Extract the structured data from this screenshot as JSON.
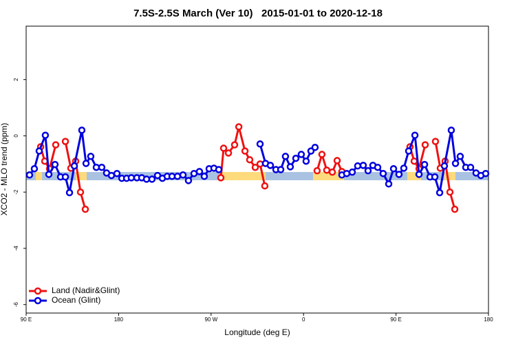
{
  "chart_data": {
    "type": "line",
    "title": "7.5S-2.5S March (Ver 10)   2015-01-01 to 2020-12-18",
    "x_label": "Longitude (deg E)",
    "y_label": "XCO2 - MLO trend (ppm)",
    "xlim": [
      90,
      540
    ],
    "ylim": [
      -6.3,
      3.9
    ],
    "xticks": [
      {
        "value": 90,
        "label": "90 E"
      },
      {
        "value": 180,
        "label": "180"
      },
      {
        "value": 270,
        "label": "90 W"
      },
      {
        "value": 360,
        "label": "0"
      },
      {
        "value": 450,
        "label": "90 E"
      },
      {
        "value": 540,
        "label": "180"
      }
    ],
    "yticks": [
      -6,
      -4,
      -2,
      0,
      2
    ],
    "legend": "bottom-left",
    "series": [
      {
        "name": "Land (Nadir&Glint)",
        "color": "#ee1111",
        "x": [
          104.1,
          108.1,
          112.8,
          118.8,
          null,
          128.2,
          133.5,
          138.2,
          142.9,
          147.6,
          null,
          279.5,
          282.2,
          286.9,
          292.9,
          297,
          303,
          307.6,
          313,
          317.7,
          322.3,
          null,
          373.2,
          377.9,
          382.6,
          388,
          392.7,
          397.3,
          null,
          463.6,
          467.7,
          472.4,
          478.4,
          null,
          488.4,
          493.1,
          497.8,
          502.5,
          507.2
        ],
        "values": [
          -0.39,
          -0.9,
          -1.17,
          -0.32,
          null,
          -0.2,
          -1.15,
          -0.9,
          -2,
          -2.61,
          null,
          -1.49,
          -0.44,
          -0.61,
          -0.32,
          0.32,
          -0.54,
          -0.85,
          -1.12,
          -1,
          -1.78,
          null,
          -1.24,
          -0.66,
          -1.22,
          -1.29,
          -0.88,
          -1.27,
          null,
          -0.39,
          -0.9,
          -1.17,
          -0.32,
          null,
          -0.2,
          -1.15,
          -0.9,
          -2,
          -2.61
        ]
      },
      {
        "name": "Ocean (Glint)",
        "color": "#0000dd",
        "x": [
          93.3,
          98,
          102.7,
          108.7,
          112.1,
          118.1,
          123.5,
          128.2,
          132.2,
          136.9,
          144.2,
          148.3,
          152.9,
          158.3,
          163.6,
          168.3,
          173,
          178.4,
          183.1,
          187.8,
          192.4,
          197.8,
          202.5,
          207.2,
          212.5,
          217.9,
          222.6,
          227.3,
          232,
          237.3,
          242.7,
          248,
          253.4,
          258.7,
          263.4,
          268.1,
          272.8,
          277.5,
          null,
          317.7,
          323,
          327.7,
          333.1,
          337.8,
          342.4,
          347.1,
          352.5,
          357.8,
          362.5,
          367.2,
          371.2,
          null,
          397.3,
          402,
          407.4,
          412.7,
          418.1,
          422.8,
          427.5,
          432.2,
          437.5,
          442.9,
          447.6,
          452.9,
          457.6,
          462.3,
          468.4,
          472.4,
          477.8,
          483.1,
          487.8,
          492.5,
          497.1,
          503.8,
          507.9,
          512.5,
          517.9,
          522.6,
          527.9,
          532.6,
          537.3
        ],
        "values": [
          -1.39,
          -1.17,
          -0.54,
          0.02,
          -1.37,
          -1.02,
          -1.46,
          -1.46,
          -2.02,
          -1.07,
          0.2,
          -0.98,
          -0.73,
          -1.12,
          -1.12,
          -1.32,
          -1.41,
          -1.34,
          -1.51,
          -1.51,
          -1.49,
          -1.49,
          -1.49,
          -1.54,
          -1.54,
          -1.41,
          -1.51,
          -1.44,
          -1.44,
          -1.44,
          -1.39,
          -1.59,
          -1.34,
          -1.27,
          -1.44,
          -1.17,
          -1.15,
          -1.2,
          null,
          -0.29,
          -0.98,
          -1.05,
          -1.2,
          -1.2,
          -0.73,
          -1.1,
          -0.8,
          -0.66,
          -0.9,
          -0.54,
          -0.41,
          null,
          -1.39,
          -1.34,
          -1.29,
          -1.07,
          -1.05,
          -1.24,
          -1.05,
          -1.12,
          -1.34,
          -1.71,
          -1.17,
          -1.37,
          -1.15,
          -0.54,
          0.02,
          -1.37,
          -1.02,
          -1.46,
          -1.46,
          -2.02,
          -1.07,
          0.2,
          -0.98,
          -0.73,
          -1.12,
          -1.12,
          -1.32,
          -1.41,
          -1.34
        ]
      }
    ]
  }
}
